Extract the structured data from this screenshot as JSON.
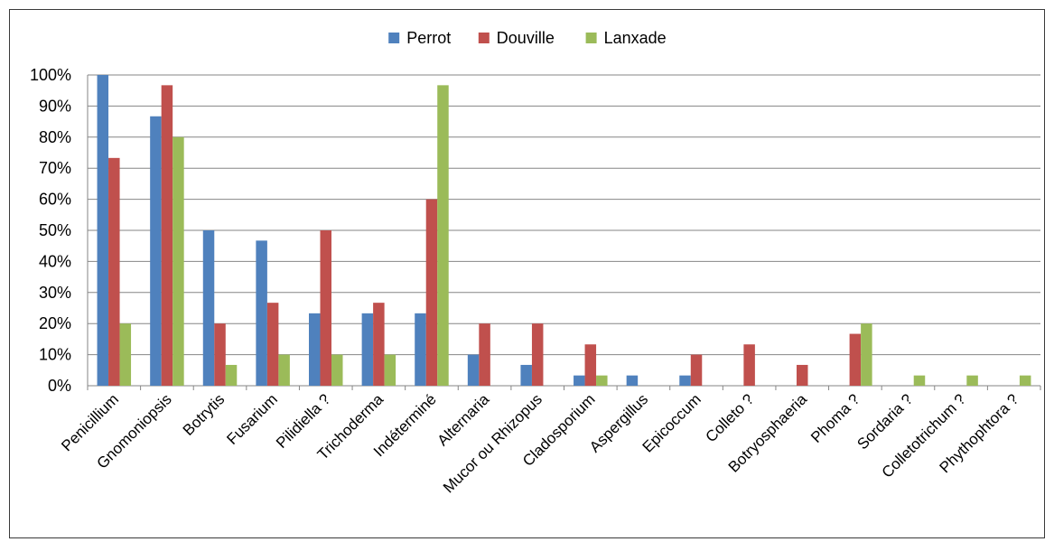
{
  "chart_data": {
    "type": "bar",
    "categories": [
      "Penicillium",
      "Gnomoniopsis",
      "Botrytis",
      "Fusarium",
      "Pilidiella ?",
      "Trichoderma",
      "Indéterminé",
      "Alternaria",
      "Mucor ou Rhizopus",
      "Cladosporium",
      "Aspergillus",
      "Epicoccum",
      "Colleto ?",
      "Botryosphaeria",
      "Phoma ?",
      "Sordaria ?",
      "Colletotrichum ?",
      "Phythophtora ?"
    ],
    "series": [
      {
        "name": "Perrot",
        "color": "#4F81BD",
        "values": [
          100,
          86.7,
          50,
          46.7,
          23.3,
          23.3,
          23.3,
          10,
          6.7,
          3.3,
          3.3,
          3.3,
          0,
          0,
          0,
          0,
          0,
          0
        ]
      },
      {
        "name": "Douville",
        "color": "#C0504D",
        "values": [
          73.3,
          96.7,
          20,
          26.7,
          50,
          26.7,
          60,
          20,
          20,
          13.3,
          0,
          10,
          13.3,
          6.7,
          16.7,
          0,
          0,
          0
        ]
      },
      {
        "name": "Lanxade",
        "color": "#9BBB59",
        "values": [
          20,
          80,
          6.7,
          10,
          10,
          10,
          96.7,
          0,
          0,
          3.3,
          0,
          0,
          0,
          0,
          20,
          3.3,
          3.3,
          3.3
        ]
      }
    ],
    "ylim": [
      0,
      100
    ],
    "yticks": [
      "0%",
      "10%",
      "20%",
      "30%",
      "40%",
      "50%",
      "60%",
      "70%",
      "80%",
      "90%",
      "100%"
    ],
    "grid": true,
    "legend_position": "top",
    "xlabel": "",
    "ylabel": "",
    "title": ""
  }
}
